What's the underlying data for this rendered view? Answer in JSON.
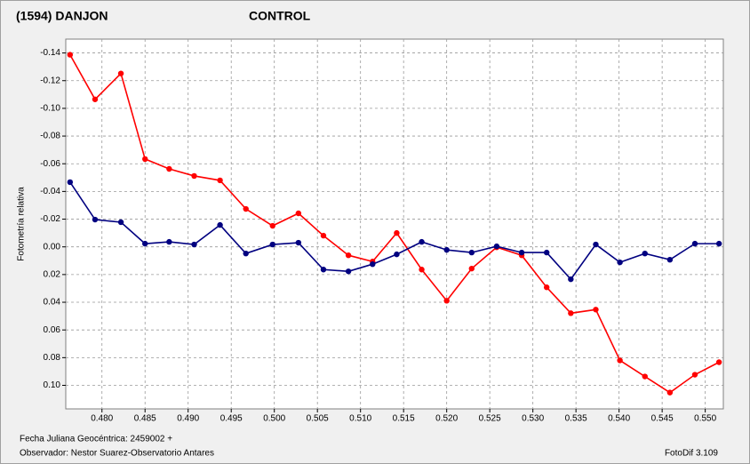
{
  "chart_data": {
    "type": "line",
    "y_label": "Fotometría relativa",
    "footer_left_1": "Fecha Juliana Geocéntrica: 2459002 +",
    "footer_left_2": "Observador: Nestor Suarez-Observatorio Antares",
    "footer_right": "FotoDif 3.109",
    "x": [
      0.4763,
      0.4792,
      0.4822,
      0.485,
      0.4878,
      0.4907,
      0.4937,
      0.4967,
      0.4998,
      0.5028,
      0.5057,
      0.5086,
      0.5114,
      0.5142,
      0.5171,
      0.52,
      0.5229,
      0.5258,
      0.5287,
      0.5316,
      0.5344,
      0.5373,
      0.5401,
      0.543,
      0.5459,
      0.5488,
      0.5516
    ],
    "series": [
      {
        "name": "(1594) DANJON",
        "color": "#ff0000",
        "values": [
          -0.1387,
          -0.1065,
          -0.1252,
          -0.0634,
          -0.0563,
          -0.0512,
          -0.048,
          -0.0274,
          -0.0152,
          -0.0242,
          -0.0081,
          0.0061,
          0.0106,
          -0.01,
          0.0164,
          0.0389,
          0.0157,
          0.0003,
          0.0061,
          0.0292,
          0.0479,
          0.0453,
          0.082,
          0.0936,
          0.1052,
          0.0923,
          0.0833
        ]
      },
      {
        "name": "CONTROL",
        "color": "#000080",
        "values": [
          -0.0467,
          -0.0197,
          -0.0178,
          -0.0023,
          -0.0036,
          -0.0017,
          -0.0158,
          0.0048,
          -0.0017,
          -0.003,
          0.0164,
          0.0177,
          0.0125,
          0.0054,
          -0.0036,
          0.0022,
          0.0041,
          -0.0004,
          0.0041,
          0.0041,
          0.0234,
          -0.0017,
          0.0112,
          0.0048,
          0.0093,
          -0.0023,
          -0.0023
        ]
      }
    ],
    "xlim": [
      0.4758,
      0.5521
    ],
    "ylim": [
      0.117,
      -0.15
    ],
    "y_inverted": true,
    "grid": true,
    "xticks": [
      {
        "value": 0.48,
        "label": "0.480"
      },
      {
        "value": 0.485,
        "label": "0.485"
      },
      {
        "value": 0.49,
        "label": "0.490"
      },
      {
        "value": 0.495,
        "label": "0.495"
      },
      {
        "value": 0.5,
        "label": "0.500"
      },
      {
        "value": 0.505,
        "label": "0.505"
      },
      {
        "value": 0.51,
        "label": "0.510"
      },
      {
        "value": 0.515,
        "label": "0.515"
      },
      {
        "value": 0.52,
        "label": "0.520"
      },
      {
        "value": 0.525,
        "label": "0.525"
      },
      {
        "value": 0.53,
        "label": "0.530"
      },
      {
        "value": 0.535,
        "label": "0.535"
      },
      {
        "value": 0.54,
        "label": "0.540"
      },
      {
        "value": 0.545,
        "label": "0.545"
      },
      {
        "value": 0.55,
        "label": "0.550"
      }
    ],
    "yticks": [
      -0.14,
      -0.12,
      {
        "value": -0.1,
        "label": "-0.10"
      },
      -0.08,
      -0.06,
      -0.04,
      -0.02,
      {
        "value": 0,
        "label": "0.00"
      },
      0.02,
      0.04,
      0.06,
      0.08,
      {
        "value": 0.1,
        "label": "0.10"
      }
    ]
  }
}
